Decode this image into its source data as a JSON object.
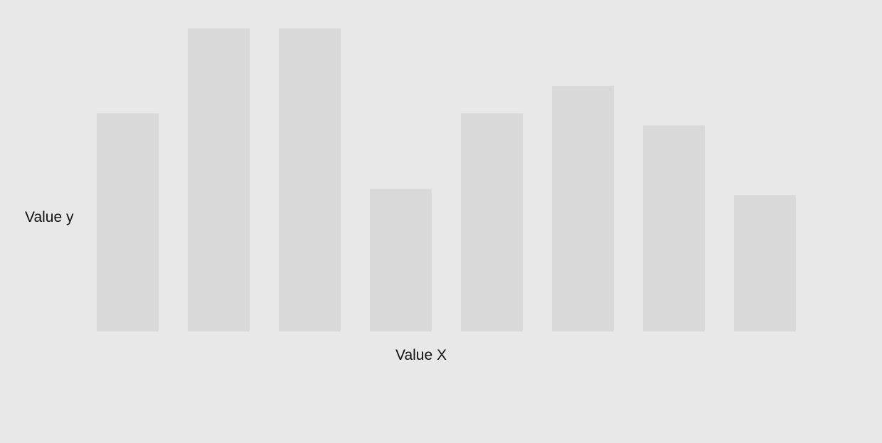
{
  "chart_data": {
    "type": "bar",
    "categories": [
      "",
      "",
      "",
      "",
      "",
      "",
      "",
      ""
    ],
    "values": [
      72,
      100,
      100,
      47,
      72,
      81,
      68,
      45
    ],
    "title": "",
    "xlabel": "Value X",
    "ylabel": "Value y",
    "ylim": [
      0,
      100
    ],
    "grid": false,
    "legend": "none",
    "colors": {
      "background": "#e8e8e8",
      "bar": "#d9d9d9",
      "text": "#111111"
    }
  }
}
